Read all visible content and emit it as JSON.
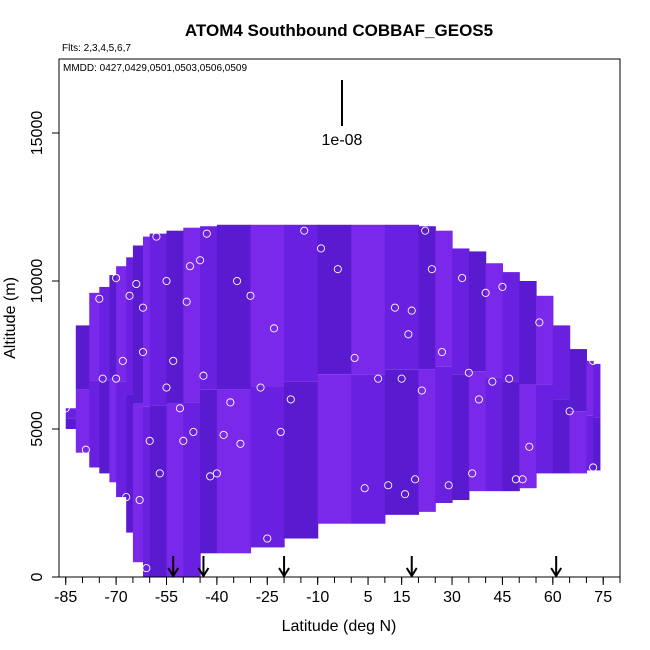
{
  "chart_data": {
    "type": "heatmap",
    "title": "ATOM4 Southbound COBBAF_GEOS5",
    "flights_label": "Flts: 2,3,4,5,6,7",
    "dates_label": "MMDD: 0427,0429,0501,0503,0506,0509",
    "xlabel": "Latitude (deg N)",
    "ylabel": "Altitude (m)",
    "xlim": [
      -87,
      80
    ],
    "ylim": [
      0,
      17500
    ],
    "x_ticks": [
      -85,
      -70,
      -55,
      -40,
      -25,
      -10,
      5,
      15,
      30,
      45,
      60,
      75
    ],
    "y_ticks": [
      0,
      5000,
      10000,
      15000
    ],
    "scale_bar_label": "1e-08",
    "colors": {
      "field_base": "#6a20e0",
      "field_dark": "#5a1ad0",
      "field_light": "#7a28ea",
      "point_stroke": "#ffffff",
      "arrow": "#000000"
    },
    "envelope": {
      "latitudes": [
        -85,
        -82,
        -78,
        -75,
        -72,
        -70,
        -67,
        -65,
        -62,
        -60,
        -55,
        -50,
        -45,
        -40,
        -30,
        -20,
        -10,
        0,
        10,
        20,
        25,
        30,
        35,
        40,
        45,
        50,
        55,
        60,
        65,
        70,
        72
      ],
      "top_altitude": [
        5700,
        8500,
        9600,
        9800,
        10200,
        10500,
        10800,
        11200,
        11500,
        11600,
        11700,
        11800,
        11850,
        11900,
        11900,
        11900,
        11900,
        11900,
        11900,
        11850,
        11700,
        11100,
        11000,
        10600,
        10300,
        10000,
        9500,
        8500,
        7700,
        7300,
        7200
      ],
      "bottom_altitude": [
        5000,
        4200,
        3700,
        3500,
        3200,
        2700,
        1500,
        500,
        0,
        0,
        0,
        0,
        800,
        800,
        1000,
        1300,
        1800,
        1800,
        2100,
        2200,
        2500,
        2600,
        2900,
        2900,
        2900,
        3000,
        3500,
        3500,
        3500,
        3600,
        3600
      ]
    },
    "points": {
      "lat": [
        -85,
        -81,
        -79,
        -75,
        -74,
        -73,
        -72,
        -71,
        -70,
        -70,
        -69,
        -68,
        -67,
        -66,
        -65,
        -64,
        -63,
        -62,
        -62,
        -61,
        -60,
        -58,
        -57,
        -55,
        -55,
        -53,
        -51,
        -50,
        -49,
        -48,
        -47,
        -45,
        -44,
        -43,
        -42,
        -40,
        -38,
        -36,
        -34,
        -33,
        -30,
        -27,
        -25,
        -23,
        -21,
        -18,
        -14,
        -9,
        -4,
        1,
        4,
        8,
        11,
        13,
        15,
        16,
        17,
        18,
        19,
        21,
        22,
        24,
        27,
        29,
        33,
        35,
        36,
        38,
        40,
        42,
        45,
        47,
        49,
        51,
        53,
        56,
        57,
        60,
        65,
        72,
        72
      ],
      "alt": [
        5700,
        9600,
        4300,
        9400,
        6700,
        2500,
        10400,
        1700,
        10100,
        6700,
        10900,
        7300,
        2700,
        9500,
        11400,
        9900,
        2600,
        9100,
        7600,
        300,
        4600,
        11500,
        3500,
        10000,
        6400,
        7300,
        5700,
        4600,
        9300,
        10500,
        4900,
        10700,
        6800,
        11600,
        3400,
        3500,
        4800,
        5900,
        10000,
        4500,
        9500,
        6400,
        1300,
        8400,
        4900,
        6000,
        11700,
        11100,
        10400,
        7400,
        3000,
        6700,
        3100,
        9100,
        6700,
        2800,
        8200,
        9000,
        3300,
        6300,
        11700,
        10400,
        7600,
        3100,
        10100,
        6900,
        3500,
        6000,
        9600,
        6600,
        9800,
        6700,
        3300,
        3300,
        4400,
        8600,
        2900,
        9700,
        5600,
        7300,
        3700
      ]
    },
    "arrows_lat": [
      -53,
      -44,
      -20,
      18,
      61
    ]
  }
}
